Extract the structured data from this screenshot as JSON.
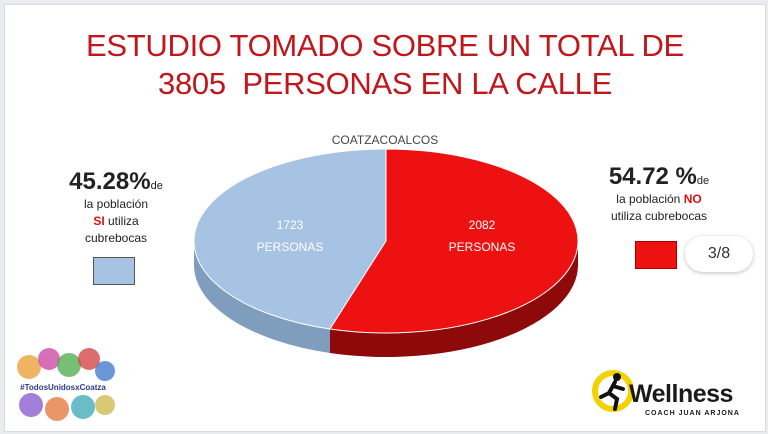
{
  "title_line1": "ESTUDIO TOMADO SOBRE UN TOTAL DE",
  "title_line2": "3805  PERSONAS EN LA CALLE",
  "colors": {
    "title": "#c0161c",
    "si": "#a6c3e3",
    "no": "#ee1111"
  },
  "chart_data": {
    "type": "pie",
    "title": "COATZACOALCOS",
    "slices": [
      {
        "name": "SI utiliza cubrebocas",
        "value": 1723,
        "label_value": "1723",
        "label_unit": "PERSONAS",
        "percent": 45.28
      },
      {
        "name": "NO utiliza cubrebocas",
        "value": 2082,
        "label_value": "2082",
        "label_unit": "PERSONAS",
        "percent": 54.72
      }
    ]
  },
  "callout_si": {
    "pct": "45.28%",
    "de": "de",
    "line1": "la población",
    "emph": "SI",
    "after_emph": " utiliza",
    "line3": "cubrebocas"
  },
  "callout_no": {
    "pct": "54.72 %",
    "de": "de",
    "line1_pre": "la población ",
    "emph": "NO",
    "line2": "utiliza cubrebocas"
  },
  "page_indicator": "3/8",
  "hashtag": "#TodosUnidosxCoatza",
  "brand": "Wellness",
  "brand_sub": "COACH JUAN ARJONA"
}
